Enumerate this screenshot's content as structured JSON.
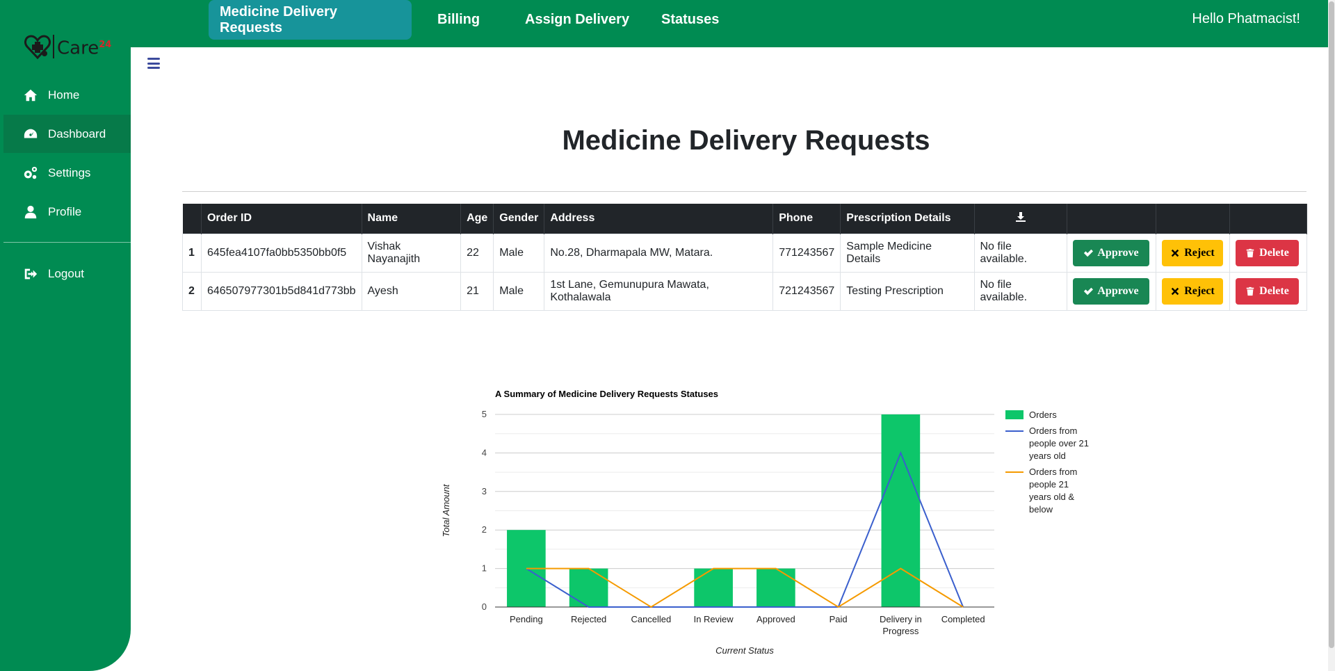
{
  "sidebar": {
    "logo_text": "Care",
    "logo_sup": "24",
    "items": [
      {
        "label": "Home",
        "icon": "home-icon"
      },
      {
        "label": "Dashboard",
        "icon": "gauge-icon"
      },
      {
        "label": "Settings",
        "icon": "gears-icon"
      },
      {
        "label": "Profile",
        "icon": "user-icon"
      },
      {
        "label": "Logout",
        "icon": "logout-icon"
      }
    ]
  },
  "header": {
    "tabs": [
      {
        "label": "Medicine Delivery Requests"
      },
      {
        "label": "Billing"
      },
      {
        "label": "Assign Delivery"
      },
      {
        "label": "Statuses"
      }
    ],
    "greeting": "Hello Phatmacist!"
  },
  "main": {
    "title": "Medicine Delivery Requests",
    "table": {
      "columns": [
        "Order ID",
        "Name",
        "Age",
        "Gender",
        "Address",
        "Phone",
        "Prescription Details"
      ],
      "download_icon": "download-icon",
      "rows": [
        {
          "index": "1",
          "order_id": "645fea4107fa0bb5350bb0f5",
          "name": "Vishak Nayanajith",
          "age": "22",
          "gender": "Male",
          "address": "No.28, Dharmapala MW, Matara.",
          "phone": "771243567",
          "prescription": "Sample Medicine Details",
          "file": "No file available.",
          "approve": "Approve",
          "reject": "Reject",
          "delete": "Delete"
        },
        {
          "index": "2",
          "order_id": "646507977301b5d841d773bb",
          "name": "Ayesh",
          "age": "21",
          "gender": "Male",
          "address": "1st Lane, Gemunupura Mawata, Kothalawala",
          "phone": "721243567",
          "prescription": "Testing Prescription",
          "file": "No file available.",
          "approve": "Approve",
          "reject": "Reject",
          "delete": "Delete"
        }
      ]
    }
  },
  "chart_data": {
    "type": "bar",
    "title": "A Summary of Medicine Delivery Requests Statuses",
    "xlabel": "Current Status",
    "ylabel": "Total Amount",
    "categories": [
      "Pending",
      "Rejected",
      "Cancelled",
      "In Review",
      "Approved",
      "Paid",
      "Delivery in Progress",
      "Completed"
    ],
    "ylim": [
      0,
      5
    ],
    "yticks": [
      0,
      1,
      2,
      3,
      4,
      5
    ],
    "grid": true,
    "legend": "right",
    "series": [
      {
        "name": "Orders",
        "type": "bar",
        "color": "#0dc66a",
        "values": [
          2,
          1,
          0,
          1,
          1,
          0,
          5,
          0
        ]
      },
      {
        "name": "Orders from people over 21 years old",
        "type": "line",
        "color": "#3a5fcd",
        "values": [
          1,
          0,
          0,
          0,
          0,
          0,
          4,
          0
        ]
      },
      {
        "name": "Orders from people 21 years old & below",
        "type": "line",
        "color": "#f59a00",
        "values": [
          1,
          1,
          0,
          1,
          1,
          0,
          1,
          0
        ]
      }
    ]
  },
  "colors": {
    "primary_green": "#008b52",
    "active_tab": "#17949a",
    "approve": "#198754",
    "reject": "#ffc107",
    "delete": "#dc3545"
  }
}
